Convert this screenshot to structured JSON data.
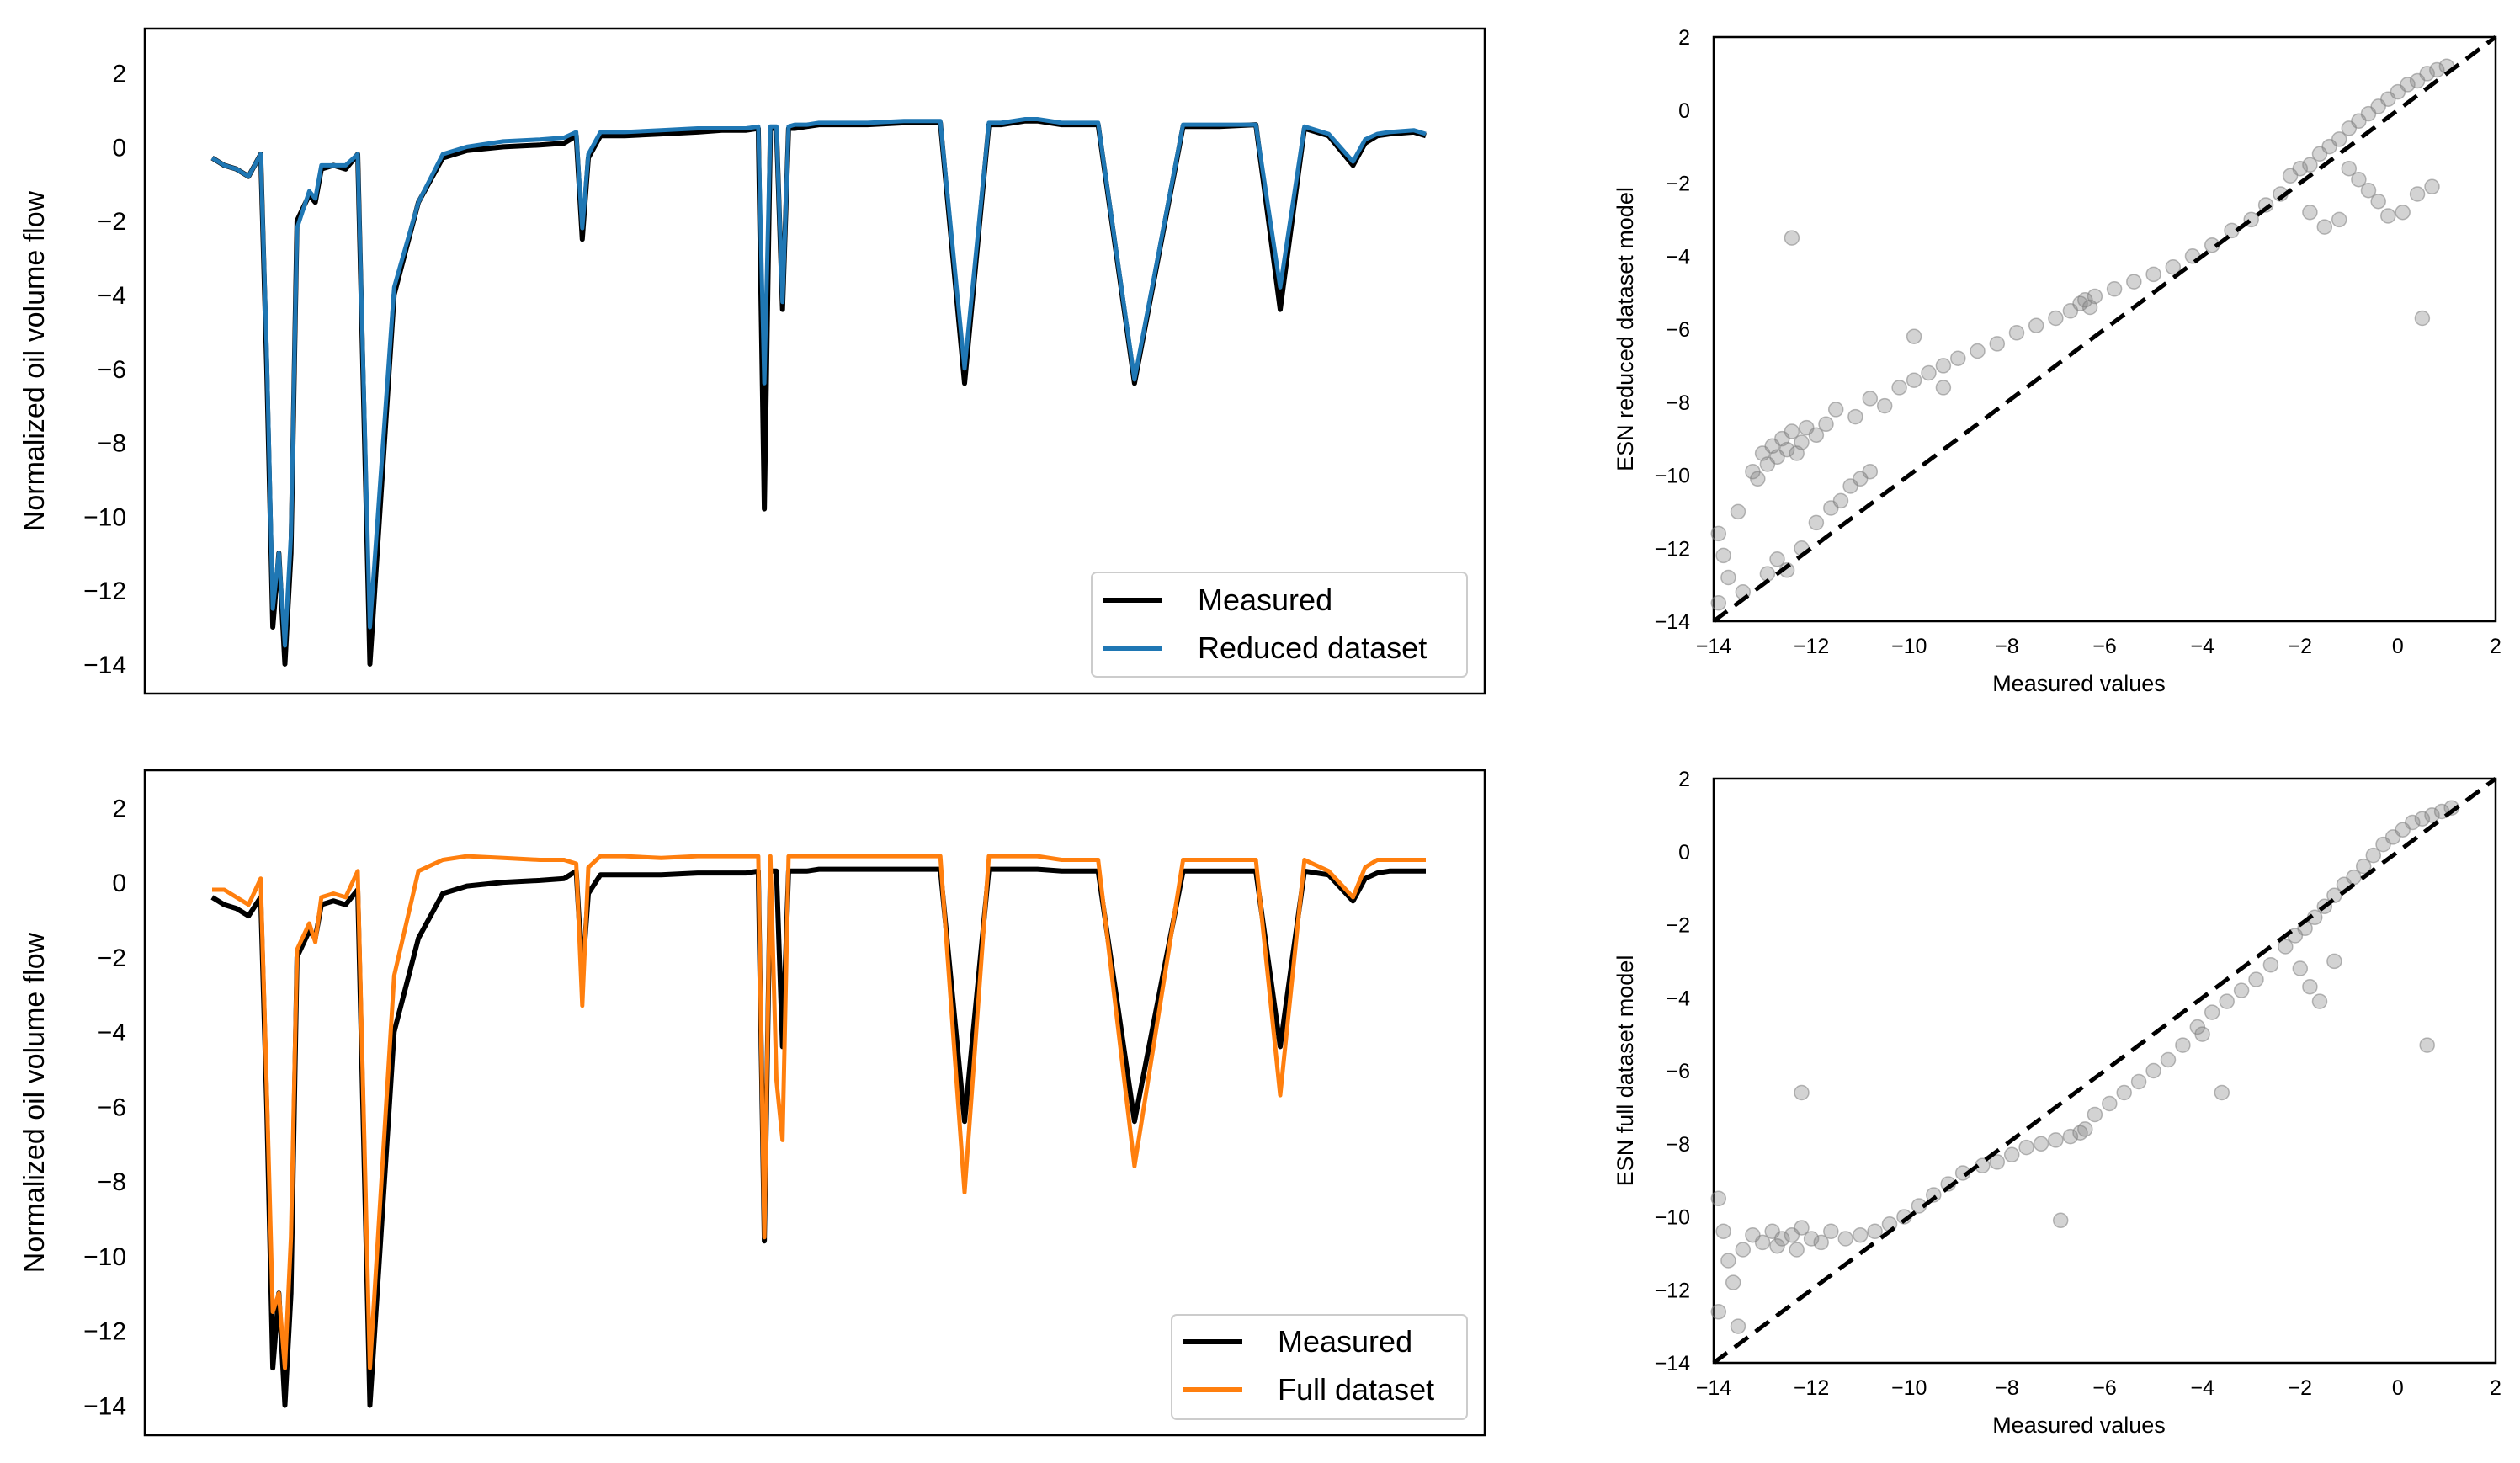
{
  "colors": {
    "measured": "#000000",
    "reduced": "#1f77b4",
    "full": "#ff7f0e",
    "scatter": "#808080",
    "identity": "#000000"
  },
  "chart_data": [
    {
      "id": "ts-reduced",
      "type": "line",
      "title": "",
      "xlabel": "",
      "ylabel": "Normalized oil volume flow",
      "ylim": [
        -14.8,
        3.2
      ],
      "yticks": [
        2,
        0,
        -2,
        -4,
        -6,
        -8,
        -10,
        -12,
        -14
      ],
      "xticks_shown": false,
      "legend_position": "lower-right",
      "series": [
        {
          "name": "Measured",
          "color": "#000000",
          "role": "measured"
        },
        {
          "name": "Reduced dataset",
          "color": "#1f77b4",
          "role": "model"
        }
      ],
      "x": [
        0,
        1,
        2,
        3,
        4,
        4.5,
        5,
        5.5,
        6,
        6.5,
        7,
        8,
        8.5,
        9,
        10,
        11,
        12,
        13,
        15,
        17,
        19,
        21,
        24,
        27,
        29,
        30,
        30.5,
        31,
        32,
        34,
        37,
        40,
        42,
        44,
        45,
        45.5,
        46,
        46.5,
        47,
        47.5,
        48,
        49,
        50,
        51,
        52,
        54,
        57,
        60,
        62,
        64,
        65,
        66,
        67,
        68,
        70,
        73,
        76,
        80,
        83,
        86,
        88,
        90,
        92,
        94,
        95,
        96,
        97,
        99,
        100
      ],
      "measured": [
        -0.3,
        -0.5,
        -0.6,
        -0.8,
        -0.2,
        -6,
        -13,
        -11,
        -14,
        -11,
        -2,
        -1.3,
        -1.5,
        -0.6,
        -0.5,
        -0.6,
        -0.2,
        -14,
        -4,
        -1.5,
        -0.3,
        -0.1,
        0,
        0.05,
        0.1,
        0.3,
        -2.5,
        -0.3,
        0.3,
        0.3,
        0.35,
        0.4,
        0.45,
        0.45,
        0.5,
        -9.8,
        0.5,
        0.5,
        -4.4,
        0.5,
        0.5,
        0.55,
        0.6,
        0.6,
        0.6,
        0.6,
        0.65,
        0.65,
        -6.4,
        0.6,
        0.6,
        0.65,
        0.7,
        0.7,
        0.6,
        0.6,
        -6.4,
        0.55,
        0.55,
        0.6,
        -4.4,
        0.5,
        0.3,
        -0.5,
        0.1,
        0.3,
        0.35,
        0.4,
        0.3
      ],
      "predicted": [
        -0.3,
        -0.5,
        -0.6,
        -0.8,
        -0.2,
        -5.5,
        -12.5,
        -11,
        -13.5,
        -10.5,
        -2.2,
        -1.2,
        -1.4,
        -0.5,
        -0.5,
        -0.5,
        -0.2,
        -13,
        -3.8,
        -1.5,
        -0.2,
        0,
        0.15,
        0.2,
        0.25,
        0.4,
        -2.2,
        -0.2,
        0.4,
        0.4,
        0.45,
        0.5,
        0.5,
        0.5,
        0.55,
        -6.4,
        0.55,
        0.55,
        -4.2,
        0.55,
        0.6,
        0.6,
        0.65,
        0.65,
        0.65,
        0.65,
        0.7,
        0.7,
        -6,
        0.65,
        0.65,
        0.7,
        0.75,
        0.75,
        0.65,
        0.65,
        -6.3,
        0.6,
        0.6,
        0.6,
        -3.8,
        0.55,
        0.35,
        -0.4,
        0.2,
        0.35,
        0.4,
        0.45,
        0.35
      ]
    },
    {
      "id": "ts-full",
      "type": "line",
      "title": "",
      "xlabel": "",
      "ylabel": "Normalized oil volume flow",
      "ylim": [
        -14.8,
        3.0
      ],
      "yticks": [
        2,
        0,
        -2,
        -4,
        -6,
        -8,
        -10,
        -12,
        -14
      ],
      "xticks_shown": false,
      "legend_position": "lower-right",
      "series": [
        {
          "name": "Measured",
          "color": "#000000",
          "role": "measured"
        },
        {
          "name": "Full dataset",
          "color": "#ff7f0e",
          "role": "model"
        }
      ],
      "x": [
        0,
        1,
        2,
        3,
        4,
        4.5,
        5,
        5.5,
        6,
        6.5,
        7,
        8,
        8.5,
        9,
        10,
        11,
        12,
        13,
        15,
        17,
        19,
        21,
        24,
        27,
        29,
        30,
        30.5,
        31,
        32,
        34,
        37,
        40,
        42,
        44,
        45,
        45.5,
        46,
        46.5,
        47,
        47.5,
        48,
        49,
        50,
        51,
        52,
        54,
        57,
        60,
        62,
        64,
        65,
        66,
        67,
        68,
        70,
        73,
        76,
        80,
        83,
        86,
        88,
        90,
        92,
        94,
        95,
        96,
        97,
        99,
        100
      ],
      "measured": [
        -0.4,
        -0.6,
        -0.7,
        -0.9,
        -0.4,
        -6,
        -13,
        -11,
        -14,
        -11,
        -2,
        -1.3,
        -1.5,
        -0.6,
        -0.5,
        -0.6,
        -0.2,
        -14,
        -4,
        -1.5,
        -0.3,
        -0.1,
        0,
        0.05,
        0.1,
        0.3,
        -2.5,
        -0.3,
        0.2,
        0.2,
        0.2,
        0.25,
        0.25,
        0.25,
        0.3,
        -9.6,
        0.3,
        0.3,
        -4.4,
        0.3,
        0.3,
        0.3,
        0.35,
        0.35,
        0.35,
        0.35,
        0.35,
        0.35,
        -6.4,
        0.35,
        0.35,
        0.35,
        0.35,
        0.35,
        0.3,
        0.3,
        -6.4,
        0.3,
        0.3,
        0.3,
        -4.4,
        0.3,
        0.2,
        -0.5,
        0.1,
        0.25,
        0.3,
        0.3,
        0.3
      ],
      "predicted": [
        -0.2,
        -0.2,
        -0.4,
        -0.6,
        0.1,
        -5.5,
        -11.5,
        -11,
        -13,
        -9.5,
        -1.8,
        -1.1,
        -1.6,
        -0.4,
        -0.3,
        -0.4,
        0.3,
        -13,
        -2.5,
        0.3,
        0.6,
        0.7,
        0.65,
        0.6,
        0.6,
        0.5,
        -3.3,
        0.4,
        0.7,
        0.7,
        0.65,
        0.7,
        0.7,
        0.7,
        0.7,
        -9.5,
        0.7,
        -5.3,
        -6.9,
        0.7,
        0.7,
        0.7,
        0.7,
        0.7,
        0.7,
        0.7,
        0.7,
        0.7,
        -8.3,
        0.7,
        0.7,
        0.7,
        0.7,
        0.7,
        0.6,
        0.6,
        -7.6,
        0.6,
        0.6,
        0.6,
        -5.7,
        0.6,
        0.3,
        -0.4,
        0.4,
        0.6,
        0.6,
        0.6,
        0.6
      ]
    },
    {
      "id": "sc-reduced",
      "type": "scatter",
      "title": "",
      "xlabel": "Measured values",
      "ylabel": "ESN reduced dataset model",
      "xlim": [
        -14,
        2
      ],
      "ylim": [
        -14,
        2
      ],
      "xticks": [
        -14,
        -12,
        -10,
        -8,
        -6,
        -4,
        -2,
        0,
        2
      ],
      "yticks": [
        2,
        0,
        -2,
        -4,
        -6,
        -8,
        -10,
        -12,
        -14
      ],
      "identity_line": true,
      "points": [
        [
          -13.9,
          -11.6
        ],
        [
          -13.8,
          -12.2
        ],
        [
          -13.7,
          -12.8
        ],
        [
          -13.5,
          -11.0
        ],
        [
          -13.2,
          -9.9
        ],
        [
          -13.1,
          -10.1
        ],
        [
          -13.0,
          -9.4
        ],
        [
          -12.9,
          -9.7
        ],
        [
          -12.8,
          -9.2
        ],
        [
          -12.7,
          -9.5
        ],
        [
          -12.6,
          -9.0
        ],
        [
          -12.5,
          -9.3
        ],
        [
          -12.4,
          -8.8
        ],
        [
          -12.3,
          -9.4
        ],
        [
          -12.2,
          -9.1
        ],
        [
          -12.1,
          -8.7
        ],
        [
          -11.9,
          -8.9
        ],
        [
          -11.7,
          -8.6
        ],
        [
          -12.7,
          -12.3
        ],
        [
          -12.5,
          -12.6
        ],
        [
          -12.2,
          -12.0
        ],
        [
          -11.9,
          -11.3
        ],
        [
          -11.6,
          -10.9
        ],
        [
          -11.4,
          -10.7
        ],
        [
          -11.2,
          -10.3
        ],
        [
          -11.0,
          -10.1
        ],
        [
          -10.8,
          -9.9
        ],
        [
          -11.5,
          -8.2
        ],
        [
          -11.1,
          -8.4
        ],
        [
          -10.8,
          -7.9
        ],
        [
          -10.5,
          -8.1
        ],
        [
          -10.2,
          -7.6
        ],
        [
          -9.9,
          -7.4
        ],
        [
          -9.6,
          -7.2
        ],
        [
          -9.3,
          -7.0
        ],
        [
          -9.0,
          -6.8
        ],
        [
          -8.6,
          -6.6
        ],
        [
          -8.2,
          -6.4
        ],
        [
          -7.8,
          -6.1
        ],
        [
          -7.4,
          -5.9
        ],
        [
          -7.0,
          -5.7
        ],
        [
          -6.7,
          -5.5
        ],
        [
          -6.5,
          -5.3
        ],
        [
          -6.4,
          -5.2
        ],
        [
          -6.3,
          -5.4
        ],
        [
          -6.2,
          -5.1
        ],
        [
          -5.8,
          -4.9
        ],
        [
          -5.4,
          -4.7
        ],
        [
          -5.0,
          -4.5
        ],
        [
          -4.6,
          -4.3
        ],
        [
          -4.2,
          -4.0
        ],
        [
          -3.8,
          -3.7
        ],
        [
          -3.4,
          -3.3
        ],
        [
          -3.0,
          -3.0
        ],
        [
          -2.7,
          -2.6
        ],
        [
          -2.4,
          -2.3
        ],
        [
          -2.2,
          -1.8
        ],
        [
          -2.0,
          -1.6
        ],
        [
          -1.8,
          -1.5
        ],
        [
          -1.6,
          -1.2
        ],
        [
          -1.4,
          -1.0
        ],
        [
          -1.2,
          -0.8
        ],
        [
          -1.0,
          -0.5
        ],
        [
          -0.8,
          -0.3
        ],
        [
          -0.6,
          -0.1
        ],
        [
          -0.4,
          0.1
        ],
        [
          -0.2,
          0.3
        ],
        [
          0.0,
          0.5
        ],
        [
          0.2,
          0.7
        ],
        [
          0.4,
          0.8
        ],
        [
          0.6,
          1.0
        ],
        [
          0.8,
          1.1
        ],
        [
          1.0,
          1.2
        ],
        [
          -1.0,
          -1.6
        ],
        [
          -0.8,
          -1.9
        ],
        [
          -0.6,
          -2.2
        ],
        [
          -0.4,
          -2.5
        ],
        [
          -0.2,
          -2.9
        ],
        [
          0.1,
          -2.8
        ],
        [
          0.4,
          -2.3
        ],
        [
          0.7,
          -2.1
        ],
        [
          -1.2,
          -3.0
        ],
        [
          -1.5,
          -3.2
        ],
        [
          -1.8,
          -2.8
        ],
        [
          0.5,
          -5.7
        ],
        [
          -12.4,
          -3.5
        ],
        [
          -9.9,
          -6.2
        ],
        [
          -12.9,
          -12.7
        ],
        [
          -13.9,
          -13.5
        ],
        [
          -13.4,
          -13.2
        ],
        [
          -9.3,
          -7.6
        ]
      ]
    },
    {
      "id": "sc-full",
      "type": "scatter",
      "title": "",
      "xlabel": "Measured values",
      "ylabel": "ESN full dataset model",
      "xlim": [
        -14,
        2
      ],
      "ylim": [
        -14,
        2
      ],
      "xticks": [
        -14,
        -12,
        -10,
        -8,
        -6,
        -4,
        -2,
        0,
        2
      ],
      "yticks": [
        2,
        0,
        -2,
        -4,
        -6,
        -8,
        -10,
        -12,
        -14
      ],
      "identity_line": true,
      "points": [
        [
          -13.9,
          -9.5
        ],
        [
          -13.8,
          -10.4
        ],
        [
          -13.7,
          -11.2
        ],
        [
          -13.6,
          -11.8
        ],
        [
          -13.4,
          -10.9
        ],
        [
          -13.2,
          -10.5
        ],
        [
          -13.0,
          -10.7
        ],
        [
          -12.8,
          -10.4
        ],
        [
          -12.7,
          -10.8
        ],
        [
          -12.6,
          -10.6
        ],
        [
          -12.4,
          -10.5
        ],
        [
          -12.3,
          -10.9
        ],
        [
          -12.2,
          -10.3
        ],
        [
          -12.0,
          -10.6
        ],
        [
          -11.8,
          -10.7
        ],
        [
          -11.6,
          -10.4
        ],
        [
          -11.3,
          -10.6
        ],
        [
          -11.0,
          -10.5
        ],
        [
          -10.7,
          -10.4
        ],
        [
          -10.4,
          -10.2
        ],
        [
          -10.1,
          -10.0
        ],
        [
          -9.8,
          -9.7
        ],
        [
          -9.5,
          -9.4
        ],
        [
          -9.2,
          -9.1
        ],
        [
          -8.9,
          -8.8
        ],
        [
          -8.5,
          -8.6
        ],
        [
          -8.2,
          -8.5
        ],
        [
          -7.9,
          -8.3
        ],
        [
          -7.6,
          -8.1
        ],
        [
          -7.3,
          -8.0
        ],
        [
          -7.0,
          -7.9
        ],
        [
          -6.7,
          -7.8
        ],
        [
          -6.5,
          -7.7
        ],
        [
          -6.4,
          -7.6
        ],
        [
          -6.2,
          -7.2
        ],
        [
          -5.9,
          -6.9
        ],
        [
          -5.6,
          -6.6
        ],
        [
          -5.3,
          -6.3
        ],
        [
          -5.0,
          -6.0
        ],
        [
          -4.7,
          -5.7
        ],
        [
          -4.4,
          -5.3
        ],
        [
          -4.1,
          -4.8
        ],
        [
          -3.8,
          -4.4
        ],
        [
          -3.5,
          -4.1
        ],
        [
          -3.2,
          -3.8
        ],
        [
          -2.9,
          -3.5
        ],
        [
          -2.6,
          -3.1
        ],
        [
          -2.3,
          -2.6
        ],
        [
          -2.1,
          -2.3
        ],
        [
          -1.9,
          -2.1
        ],
        [
          -1.7,
          -1.8
        ],
        [
          -1.5,
          -1.5
        ],
        [
          -1.3,
          -1.2
        ],
        [
          -1.1,
          -0.9
        ],
        [
          -0.9,
          -0.7
        ],
        [
          -0.7,
          -0.4
        ],
        [
          -0.5,
          -0.1
        ],
        [
          -0.3,
          0.2
        ],
        [
          -0.1,
          0.4
        ],
        [
          0.1,
          0.6
        ],
        [
          0.3,
          0.8
        ],
        [
          0.5,
          0.9
        ],
        [
          0.7,
          1.0
        ],
        [
          0.9,
          1.1
        ],
        [
          1.1,
          1.2
        ],
        [
          -2.0,
          -3.2
        ],
        [
          -1.8,
          -3.7
        ],
        [
          -1.6,
          -4.1
        ],
        [
          -1.3,
          -3.0
        ],
        [
          0.6,
          -5.3
        ],
        [
          -12.2,
          -6.6
        ],
        [
          -6.9,
          -10.1
        ],
        [
          -3.6,
          -6.6
        ],
        [
          -4.0,
          -5.0
        ],
        [
          -13.9,
          -12.6
        ],
        [
          -13.5,
          -13.0
        ]
      ]
    }
  ],
  "panels": {
    "ts_reduced": {
      "ylabel": "Normalized oil volume flow",
      "legend": {
        "measured": "Measured",
        "model": "Reduced dataset"
      }
    },
    "ts_full": {
      "ylabel": "Normalized oil volume flow",
      "legend": {
        "measured": "Measured",
        "model": "Full dataset"
      }
    },
    "sc_reduced": {
      "xlabel": "Measured values",
      "ylabel": "ESN reduced dataset model"
    },
    "sc_full": {
      "xlabel": "Measured values",
      "ylabel": "ESN full dataset model"
    }
  }
}
